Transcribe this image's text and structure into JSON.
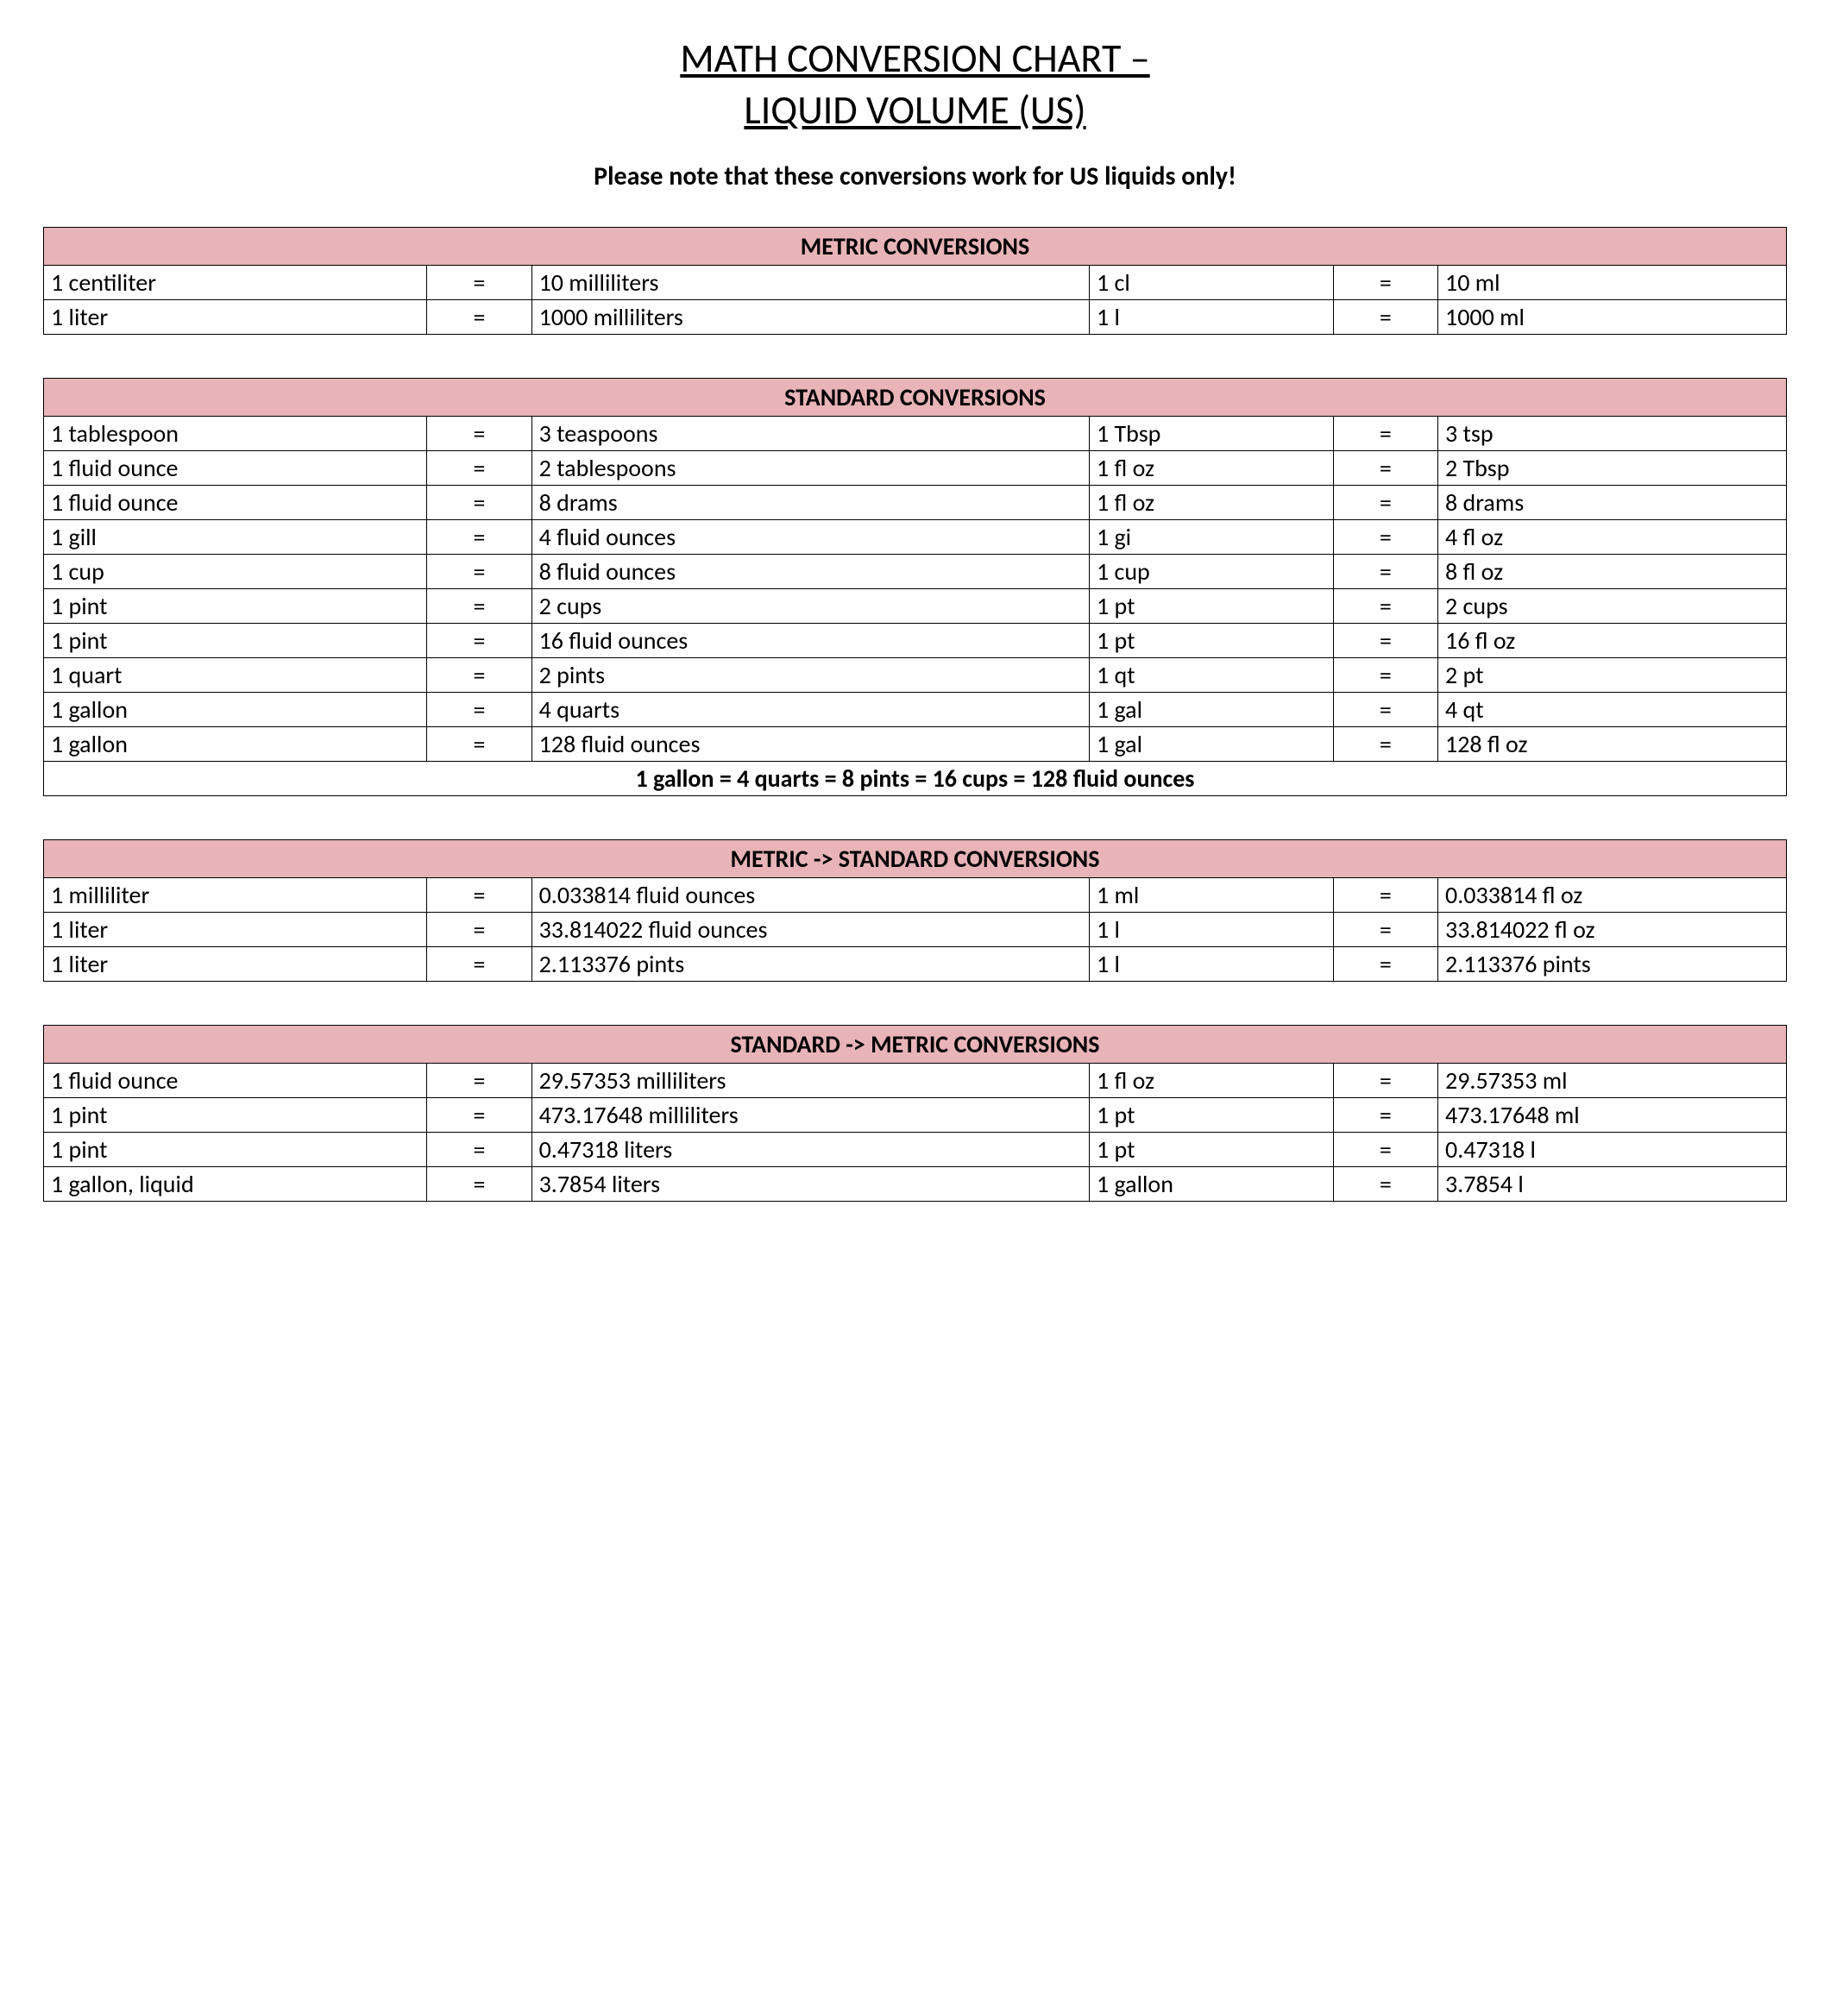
{
  "title_line1": "MATH CONVERSION CHART –",
  "title_line2": "LIQUID VOLUME (US)",
  "note": "Please note that these conversions work for US liquids only!",
  "styling": {
    "header_bg": "#e8b4b8",
    "border_color": "#000000",
    "body_font": "Calibri",
    "title_fontsize_pt": 34,
    "note_fontsize_pt": 22,
    "table_fontsize_pt": 21,
    "columns": [
      "left_unit",
      "=",
      "right_long",
      "abbrev_left",
      "=",
      "abbrev_right"
    ]
  },
  "tables": [
    {
      "header": "METRIC CONVERSIONS",
      "rows": [
        [
          "1 centiliter",
          "=",
          "10 milliliters",
          "1 cl",
          "=",
          "10 ml"
        ],
        [
          "1 liter",
          "=",
          "1000 milliliters",
          "1 l",
          "=",
          "1000 ml"
        ]
      ]
    },
    {
      "header": "STANDARD CONVERSIONS",
      "rows": [
        [
          "1 tablespoon",
          "=",
          "3 teaspoons",
          "1 Tbsp",
          "=",
          "3 tsp"
        ],
        [
          "1 fluid ounce",
          "=",
          "2 tablespoons",
          "1 fl oz",
          "=",
          "2 Tbsp"
        ],
        [
          "1 fluid ounce",
          "=",
          "8 drams",
          "1 fl oz",
          "=",
          "8 drams"
        ],
        [
          "1 gill",
          "=",
          "4 fluid ounces",
          "1 gi",
          "=",
          "4 fl oz"
        ],
        [
          "1 cup",
          "=",
          "8 fluid ounces",
          "1 cup",
          "=",
          "8 fl oz"
        ],
        [
          "1 pint",
          "=",
          "2 cups",
          "1 pt",
          "=",
          "2 cups"
        ],
        [
          "1 pint",
          "=",
          "16 fluid ounces",
          "1 pt",
          "=",
          "16 fl oz"
        ],
        [
          "1 quart",
          "=",
          "2 pints",
          "1 qt",
          "=",
          "2 pt"
        ],
        [
          "1 gallon",
          "=",
          "4 quarts",
          "1 gal",
          "=",
          "4 qt"
        ],
        [
          "1 gallon",
          "=",
          "128 fluid ounces",
          "1 gal",
          "=",
          "128 fl oz"
        ]
      ],
      "footer": "1 gallon = 4 quarts = 8 pints = 16 cups = 128 fluid ounces"
    },
    {
      "header": "METRIC -> STANDARD CONVERSIONS",
      "rows": [
        [
          "1 milliliter",
          "=",
          "0.033814 fluid ounces",
          "1 ml",
          "=",
          "0.033814 fl oz"
        ],
        [
          "1 liter",
          "=",
          "33.814022 fluid ounces",
          "1 l",
          "=",
          "33.814022 fl oz"
        ],
        [
          "1 liter",
          "=",
          "2.113376 pints",
          "1 l",
          "=",
          "2.113376 pints"
        ]
      ]
    },
    {
      "header": "STANDARD -> METRIC CONVERSIONS",
      "rows": [
        [
          "1 fluid ounce",
          "=",
          "29.57353 milliliters",
          "1 fl oz",
          "=",
          "29.57353 ml"
        ],
        [
          "1 pint",
          "=",
          "473.17648 milliliters",
          "1 pt",
          "=",
          "473.17648 ml"
        ],
        [
          "1 pint",
          "=",
          "0.47318 liters",
          "1 pt",
          "=",
          "0.47318 l"
        ],
        [
          "1 gallon, liquid",
          "=",
          "3.7854 liters",
          "1 gallon",
          "=",
          "3.7854 l"
        ]
      ]
    }
  ]
}
